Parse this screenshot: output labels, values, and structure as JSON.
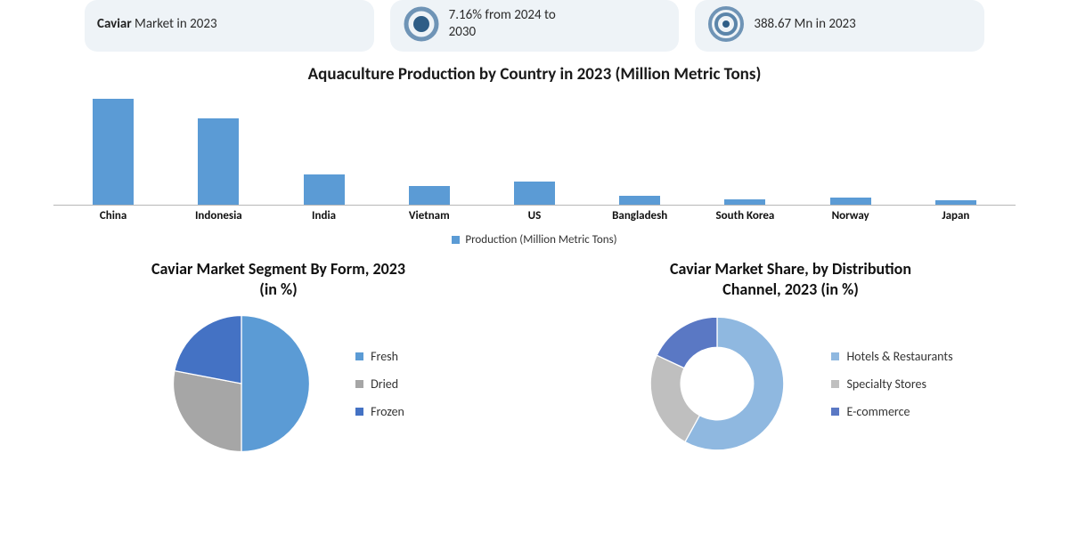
{
  "cards": [
    {
      "line1_bold": "Caviar",
      "line1_rest": " Market in 2023"
    },
    {
      "line1": "7.16% from 2024 to",
      "line2": "2030"
    },
    {
      "line1": "388.67 Mn in 2023"
    }
  ],
  "bar_chart": {
    "title": "Aquaculture Production by Country in 2023 (Million Metric Tons)",
    "categories": [
      "China",
      "Indonesia",
      "India",
      "Vietnam",
      "US",
      "Bangladesh",
      "South Korea",
      "Norway",
      "Japan"
    ],
    "values": [
      92,
      75,
      26,
      16,
      20,
      8,
      5,
      6,
      4
    ],
    "bar_color": "#5b9bd5",
    "axis_color": "#b7b7b7",
    "legend_label": "Production (Million Metric Tons)",
    "max_value": 100
  },
  "pie_chart": {
    "title_l1": "Caviar Market Segment By Form, 2023",
    "title_l2": "(in %)",
    "slices": [
      {
        "label": "Fresh",
        "value": 50,
        "color": "#5b9bd5"
      },
      {
        "label": "Dried",
        "value": 28,
        "color": "#a6a6a6"
      },
      {
        "label": "Frozen",
        "value": 22,
        "color": "#4472c4"
      }
    ],
    "radius": 90
  },
  "donut_chart": {
    "title_l1": "Caviar Market Share, by Distribution",
    "title_l2": "Channel, 2023 (in %)",
    "slices": [
      {
        "label": "Hotels & Restaurants",
        "value": 58,
        "color": "#8fb8e0"
      },
      {
        "label": "Specialty Stores",
        "value": 24,
        "color": "#bfbfbf"
      },
      {
        "label": "E-commerce",
        "value": 18,
        "color": "#5a78c4"
      }
    ],
    "outer_radius": 88,
    "inner_radius": 48
  },
  "colors": {
    "card_bg": "#eef3f7",
    "ring1": "#6f94b6",
    "ring2": "#5b85aa",
    "text": "#1a1a1a"
  }
}
